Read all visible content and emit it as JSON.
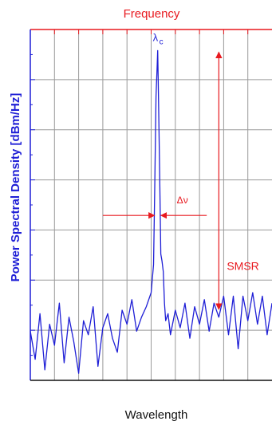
{
  "chart_data": {
    "type": "line",
    "title": "",
    "xlabel_top": "Frequency",
    "xlabel_bottom": "Wavelength",
    "ylabel": "Power Spectral Density [dBm/Hz]",
    "grid": true,
    "xlim": [
      0,
      10
    ],
    "ylim": [
      0,
      10
    ],
    "xticks_count": 10,
    "yticks_count": 7,
    "series": [
      {
        "color": "#1f1fd6",
        "peak_x": 5.27,
        "peak_y": 9.4,
        "noise_floor_y": 1.5,
        "noise_floor_right_y": 2.0,
        "x": [
          0.0,
          0.2,
          0.4,
          0.6,
          0.8,
          1.0,
          1.2,
          1.4,
          1.6,
          1.8,
          2.0,
          2.2,
          2.4,
          2.6,
          2.8,
          3.0,
          3.2,
          3.4,
          3.6,
          3.8,
          4.0,
          4.2,
          4.4,
          4.6,
          4.8,
          5.0,
          5.1,
          5.15,
          5.2,
          5.25,
          5.27,
          5.3,
          5.35,
          5.4,
          5.45,
          5.5,
          5.55,
          5.6,
          5.7,
          5.8,
          6.0,
          6.2,
          6.4,
          6.6,
          6.8,
          7.0,
          7.2,
          7.4,
          7.6,
          7.8,
          8.0,
          8.2,
          8.4,
          8.6,
          8.8,
          9.0,
          9.2,
          9.4,
          9.6,
          9.8,
          10.0
        ],
        "y": [
          1.4,
          0.6,
          1.9,
          0.3,
          1.6,
          1.0,
          2.2,
          0.5,
          1.8,
          1.1,
          0.2,
          1.7,
          1.3,
          2.1,
          0.4,
          1.5,
          1.9,
          1.2,
          0.8,
          2.0,
          1.6,
          2.3,
          1.4,
          1.8,
          2.1,
          2.5,
          3.3,
          5.5,
          8.1,
          9.0,
          9.4,
          8.2,
          6.0,
          3.6,
          3.4,
          3.1,
          2.2,
          1.7,
          1.9,
          1.3,
          2.0,
          1.5,
          2.2,
          1.2,
          2.1,
          1.6,
          2.3,
          1.4,
          2.2,
          1.8,
          2.4,
          1.3,
          2.4,
          0.9,
          2.4,
          1.7,
          2.5,
          1.6,
          2.4,
          1.3,
          2.2
        ]
      }
    ],
    "annotations": {
      "peak_label": "λ",
      "peak_label_sub": "c",
      "linewidth_label": "Δν",
      "smsr_label": "SMSR"
    },
    "axis_colors": {
      "top": "#e8191f",
      "left": "#1f1fd6"
    }
  }
}
